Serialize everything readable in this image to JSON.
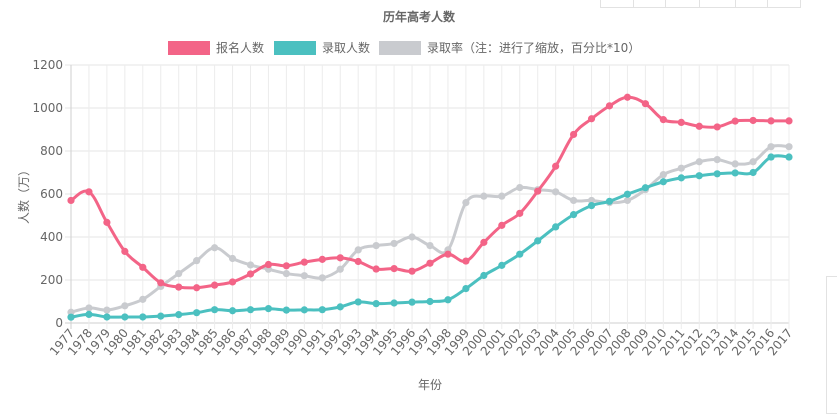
{
  "chart_data": {
    "type": "line",
    "title": "历年高考人数",
    "xlabel": "年份",
    "ylabel": "人数（万）",
    "ylim": [
      0,
      1200
    ],
    "yticks": [
      0,
      200,
      400,
      600,
      800,
      1000,
      1200
    ],
    "grid": true,
    "legend": "top-center",
    "categories": [
      "1977",
      "1978",
      "1979",
      "1980",
      "1981",
      "1982",
      "1983",
      "1984",
      "1985",
      "1986",
      "1987",
      "1988",
      "1989",
      "1990",
      "1991",
      "1992",
      "1993",
      "1994",
      "1995",
      "1996",
      "1997",
      "1998",
      "1999",
      "2000",
      "2001",
      "2002",
      "2003",
      "2004",
      "2005",
      "2006",
      "2007",
      "2008",
      "2009",
      "2010",
      "2011",
      "2012",
      "2013",
      "2014",
      "2015",
      "2016",
      "2017"
    ],
    "series": [
      {
        "name": "报名人数",
        "color": "#f36487",
        "values": [
          570,
          610,
          468,
          333,
          259,
          187,
          167,
          164,
          176,
          191,
          228,
          272,
          266,
          283,
          296,
          303,
          286,
          251,
          253,
          241,
          278,
          320,
          288,
          375,
          454,
          510,
          613,
          729,
          877,
          950,
          1010,
          1050,
          1020,
          946,
          933,
          915,
          912,
          939,
          942,
          940,
          940
        ]
      },
      {
        "name": "录取人数",
        "color": "#4bc0c0",
        "values": [
          27,
          40,
          28,
          28,
          28,
          32,
          39,
          48,
          62,
          57,
          62,
          67,
          60,
          61,
          62,
          75,
          98,
          90,
          93,
          97,
          100,
          108,
          160,
          221,
          268,
          320,
          382,
          447,
          504,
          546,
          566,
          599,
          629,
          657,
          675,
          685,
          694,
          698,
          700,
          772,
          772
        ]
      },
      {
        "name": "录取率（注：进行了缩放，百分比*10）",
        "color": "#c9cbcf",
        "values": [
          50,
          70,
          60,
          80,
          110,
          170,
          230,
          290,
          350,
          300,
          270,
          250,
          230,
          220,
          210,
          250,
          340,
          360,
          370,
          400,
          360,
          340,
          560,
          590,
          590,
          630,
          620,
          610,
          570,
          570,
          560,
          570,
          620,
          690,
          720,
          750,
          760,
          740,
          750,
          820,
          820
        ]
      }
    ]
  }
}
